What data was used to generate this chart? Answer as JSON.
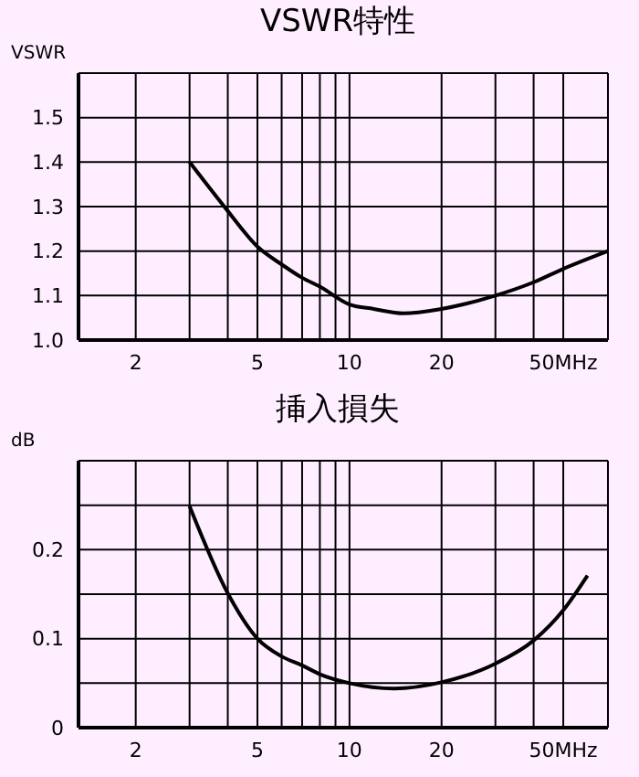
{
  "chart_data": [
    {
      "type": "line",
      "title": "VSWR特性",
      "ylabel": "VSWR",
      "log": "x",
      "grid": true,
      "marker": "none",
      "line_style": "solid",
      "x": [
        3,
        4,
        5,
        6,
        7,
        8,
        10,
        12,
        15,
        20,
        30,
        40,
        50,
        70
      ],
      "series": [
        {
          "color": "#000000",
          "values": [
            1.4,
            1.29,
            1.21,
            1.17,
            1.14,
            1.12,
            1.08,
            1.07,
            1.06,
            1.07,
            1.1,
            1.13,
            1.16,
            1.2
          ]
        }
      ],
      "xlim": [
        1.3,
        70
      ],
      "xticks": [
        {
          "value": 2,
          "label": "2"
        },
        {
          "value": 3,
          "label": null
        },
        {
          "value": 4,
          "label": null
        },
        {
          "value": 5,
          "label": "5"
        },
        {
          "value": 6,
          "label": null
        },
        {
          "value": 7,
          "label": null
        },
        {
          "value": 8,
          "label": null
        },
        {
          "value": 9,
          "label": null
        },
        {
          "value": 10,
          "label": "10"
        },
        {
          "value": 20,
          "label": "20"
        },
        {
          "value": 30,
          "label": null
        },
        {
          "value": 40,
          "label": null
        },
        {
          "value": 50,
          "label": "50MHz"
        }
      ],
      "ylim": [
        1.0,
        1.6
      ],
      "yticks": [
        {
          "value": 1.0,
          "label": "1.0"
        },
        {
          "value": 1.1,
          "label": "1.1"
        },
        {
          "value": 1.2,
          "label": "1.2"
        },
        {
          "value": 1.3,
          "label": "1.3"
        },
        {
          "value": 1.4,
          "label": "1.4"
        },
        {
          "value": 1.5,
          "label": "1.5"
        }
      ]
    },
    {
      "type": "line",
      "title": "挿入損失",
      "ylabel": "dB",
      "log": "x",
      "grid": true,
      "marker": "none",
      "line_style": "solid",
      "x": [
        3,
        4,
        5,
        6,
        7,
        8,
        10,
        14,
        20,
        30,
        40,
        50,
        60
      ],
      "series": [
        {
          "color": "#000000",
          "values": [
            0.249,
            0.151,
            0.1,
            0.08,
            0.07,
            0.06,
            0.05,
            0.044,
            0.051,
            0.072,
            0.098,
            0.132,
            0.171
          ]
        }
      ],
      "xlim": [
        1.3,
        70
      ],
      "xticks": [
        {
          "value": 2,
          "label": "2"
        },
        {
          "value": 3,
          "label": null
        },
        {
          "value": 4,
          "label": null
        },
        {
          "value": 5,
          "label": "5"
        },
        {
          "value": 6,
          "label": null
        },
        {
          "value": 7,
          "label": null
        },
        {
          "value": 8,
          "label": null
        },
        {
          "value": 9,
          "label": null
        },
        {
          "value": 10,
          "label": "10"
        },
        {
          "value": 20,
          "label": "20"
        },
        {
          "value": 30,
          "label": null
        },
        {
          "value": 40,
          "label": null
        },
        {
          "value": 50,
          "label": "50MHz"
        }
      ],
      "ylim": [
        0,
        0.3
      ],
      "yticks": [
        0,
        {
          "value": 0.05,
          "label": null
        },
        {
          "value": 0.1,
          "label": "0.1"
        },
        {
          "value": 0.15,
          "label": null
        },
        {
          "value": 0.2,
          "label": "0.2"
        },
        {
          "value": 0.25,
          "label": null
        }
      ]
    }
  ]
}
